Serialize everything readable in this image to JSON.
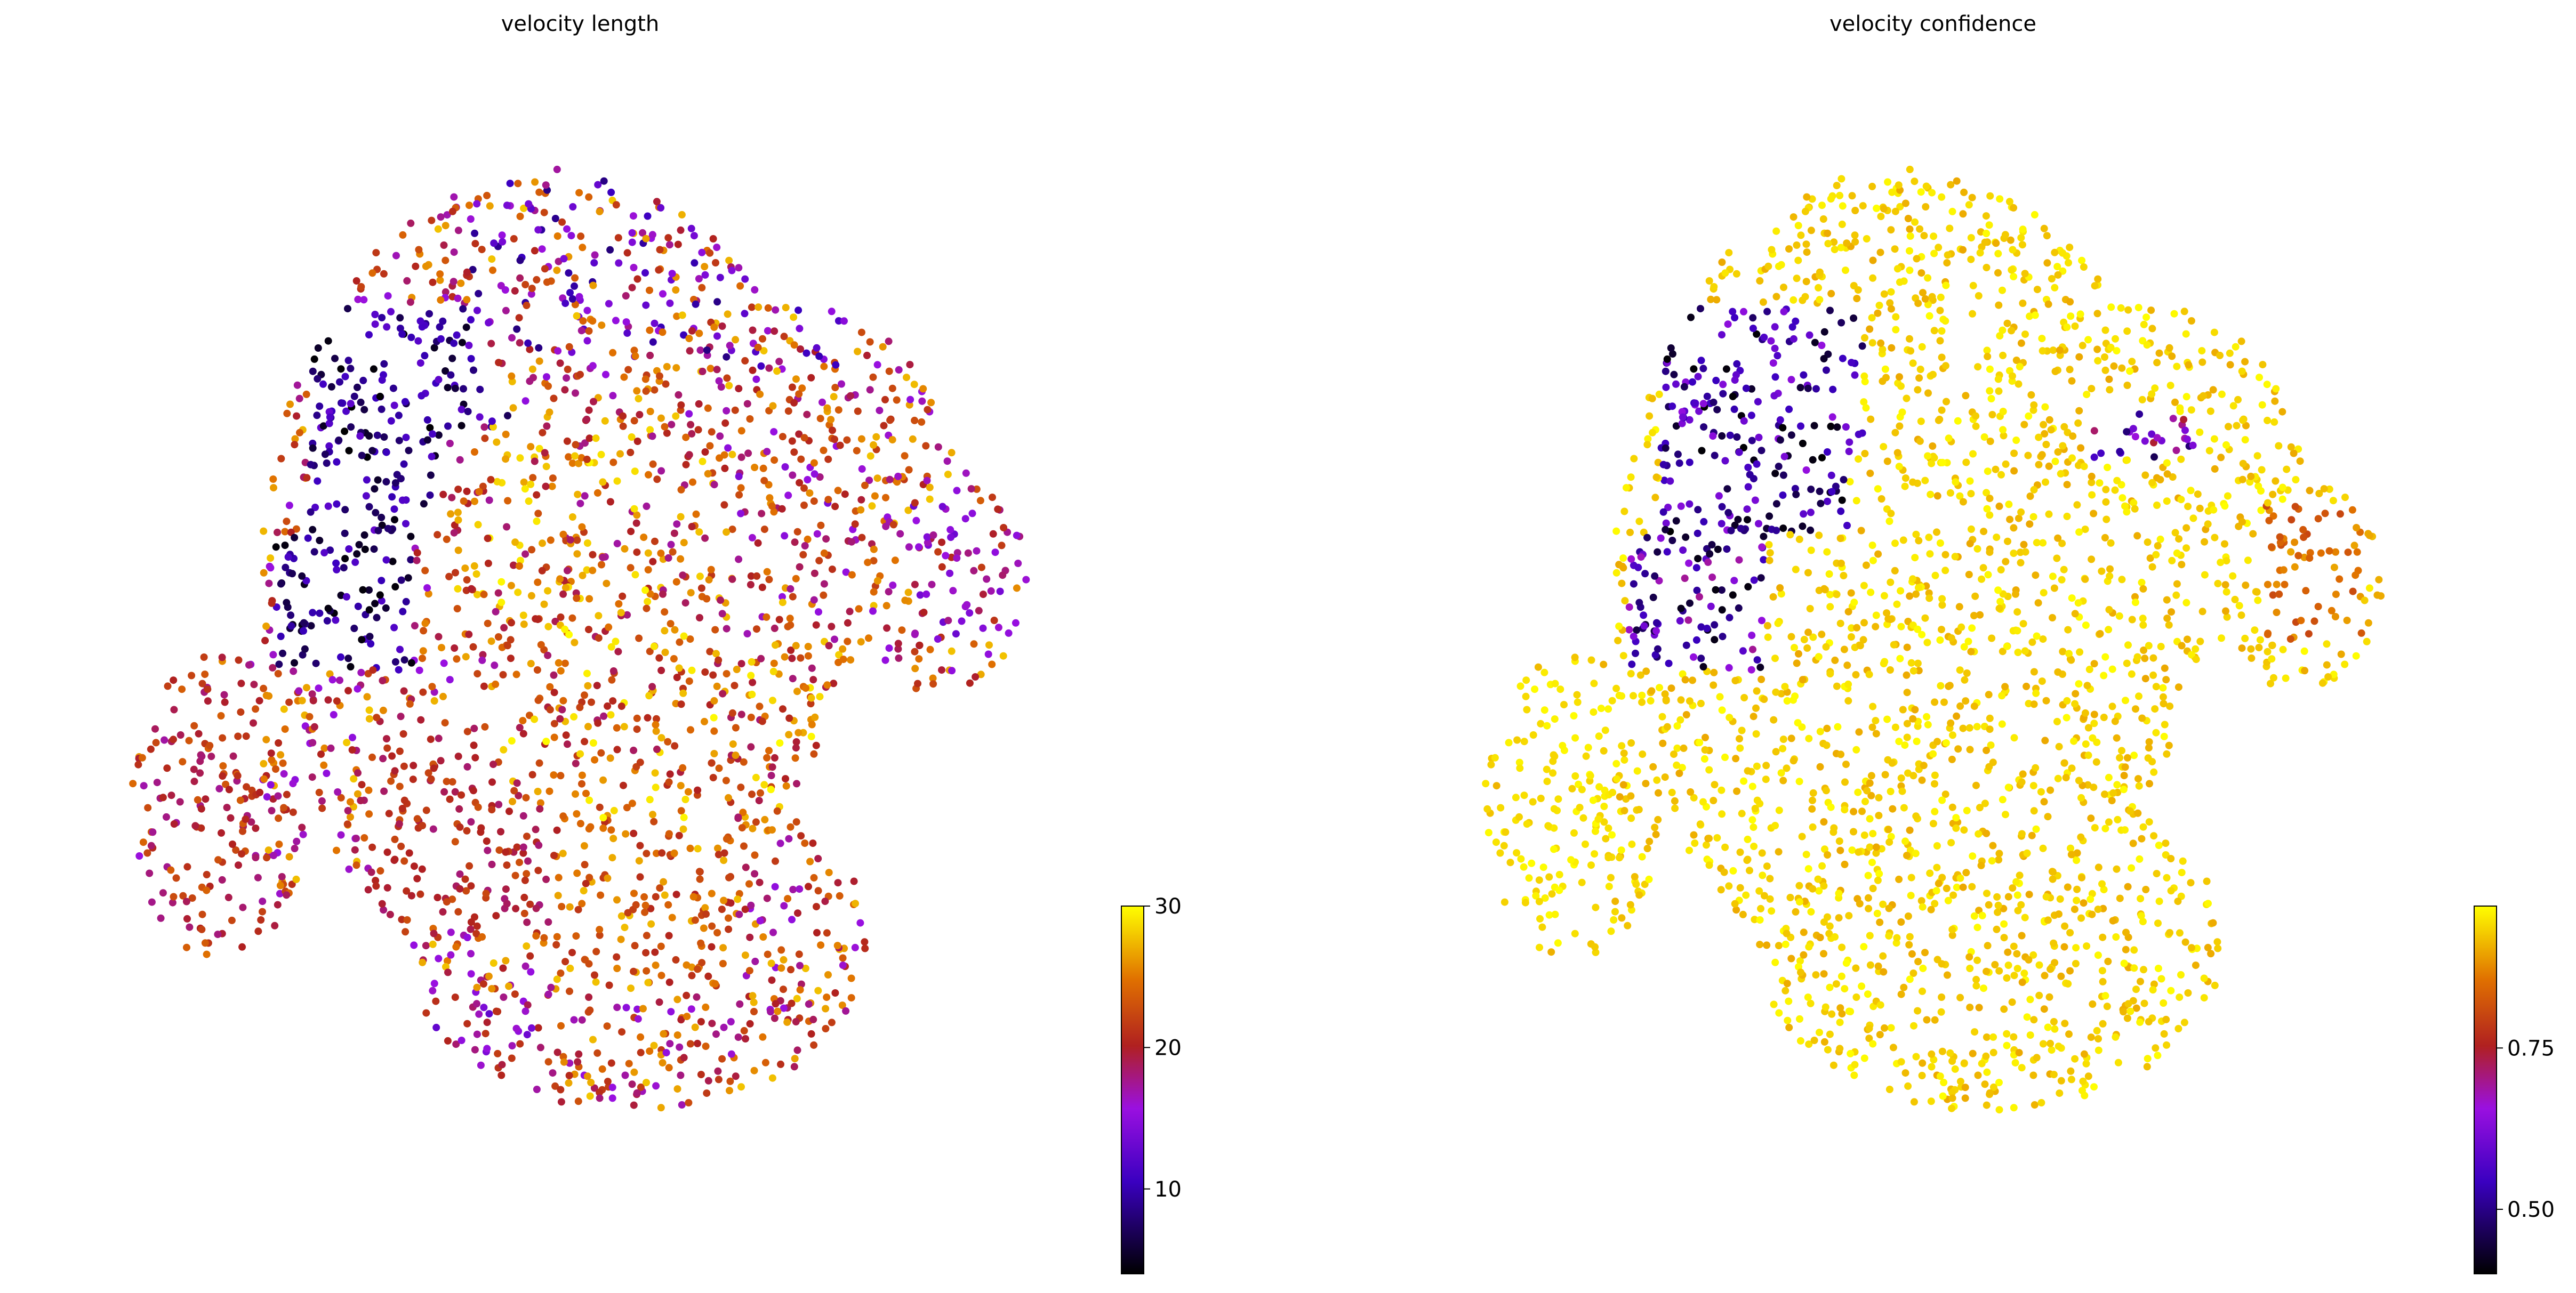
{
  "chart_data": [
    {
      "type": "scatter",
      "title": "velocity length",
      "xlabel": "",
      "ylabel": "",
      "grid": false,
      "colormap": "gnuplot",
      "colorbar": {
        "range": [
          4,
          30
        ],
        "ticks": [
          10,
          20,
          30
        ],
        "tick_labels": [
          "10",
          "20",
          "30"
        ]
      },
      "x_range": [
        -1.8,
        1.8
      ],
      "y_range": [
        -1.65,
        1.65
      ],
      "regions": [
        {
          "x": [
            -0.98,
            -0.25
          ],
          "y": [
            0.35,
            1.1
          ],
          "value_range": [
            4,
            13
          ]
        },
        {
          "x": [
            -1.1,
            -0.6
          ],
          "y": [
            -0.1,
            0.35
          ],
          "value_range": [
            4,
            12
          ]
        },
        {
          "x": [
            -1.55,
            -1.15
          ],
          "y": [
            -1.0,
            -0.1
          ],
          "value_range": [
            17,
            24
          ]
        },
        {
          "x": [
            -0.75,
            -0.05
          ],
          "y": [
            -0.95,
            -0.25
          ],
          "value_range": [
            18,
            23
          ]
        },
        {
          "x": [
            -0.1,
            0.55
          ],
          "y": [
            -1.15,
            -0.45
          ],
          "value_range": [
            20,
            28
          ]
        },
        {
          "x": [
            0.55,
            0.95
          ],
          "y": [
            0.2,
            0.75
          ],
          "value_range": [
            14,
            26
          ]
        },
        {
          "x": [
            1.2,
            1.55
          ],
          "y": [
            0.0,
            0.45
          ],
          "value_range": [
            13,
            22
          ]
        },
        {
          "x": [
            -0.5,
            0.5
          ],
          "y": [
            0.0,
            0.7
          ],
          "value_range": [
            17,
            30
          ]
        },
        {
          "x": [
            -0.75,
            -0.15
          ],
          "y": [
            -1.55,
            -1.15
          ],
          "value_range": [
            12,
            22
          ]
        },
        {
          "x": [
            -0.4,
            1.0
          ],
          "y": [
            0.9,
            1.55
          ],
          "value_range": [
            8,
            28
          ]
        },
        {
          "x": [
            -0.3,
            1.1
          ],
          "y": [
            -0.6,
            0.0
          ],
          "value_range": [
            18,
            30
          ]
        }
      ]
    },
    {
      "type": "scatter",
      "title": "velocity confidence",
      "xlabel": "",
      "ylabel": "",
      "grid": false,
      "colormap": "gnuplot",
      "colorbar": {
        "range": [
          0.4,
          0.97
        ],
        "ticks": [
          0.5,
          0.75
        ],
        "tick_labels": [
          "0.50",
          "0.75"
        ]
      },
      "x_range": [
        -1.8,
        1.8
      ],
      "y_range": [
        -1.65,
        1.65
      ],
      "regions": [
        {
          "x": [
            -0.98,
            -0.25
          ],
          "y": [
            0.35,
            1.1
          ],
          "value_range": [
            0.4,
            0.65
          ]
        },
        {
          "x": [
            -1.1,
            -0.6
          ],
          "y": [
            -0.1,
            0.35
          ],
          "value_range": [
            0.4,
            0.7
          ]
        },
        {
          "x": [
            0.55,
            0.95
          ],
          "y": [
            0.35,
            0.75
          ],
          "value_range": [
            0.45,
            0.75
          ]
        },
        {
          "x": [
            1.2,
            1.55
          ],
          "y": [
            0.0,
            0.45
          ],
          "value_range": [
            0.8,
            0.9
          ]
        },
        {
          "x": [
            -1.55,
            -1.15
          ],
          "y": [
            -1.0,
            -0.1
          ],
          "value_range": [
            0.93,
            0.97
          ]
        },
        {
          "x": [
            -0.3,
            1.1
          ],
          "y": [
            -1.55,
            0.6
          ],
          "value_range": [
            0.9,
            0.97
          ]
        }
      ]
    }
  ]
}
